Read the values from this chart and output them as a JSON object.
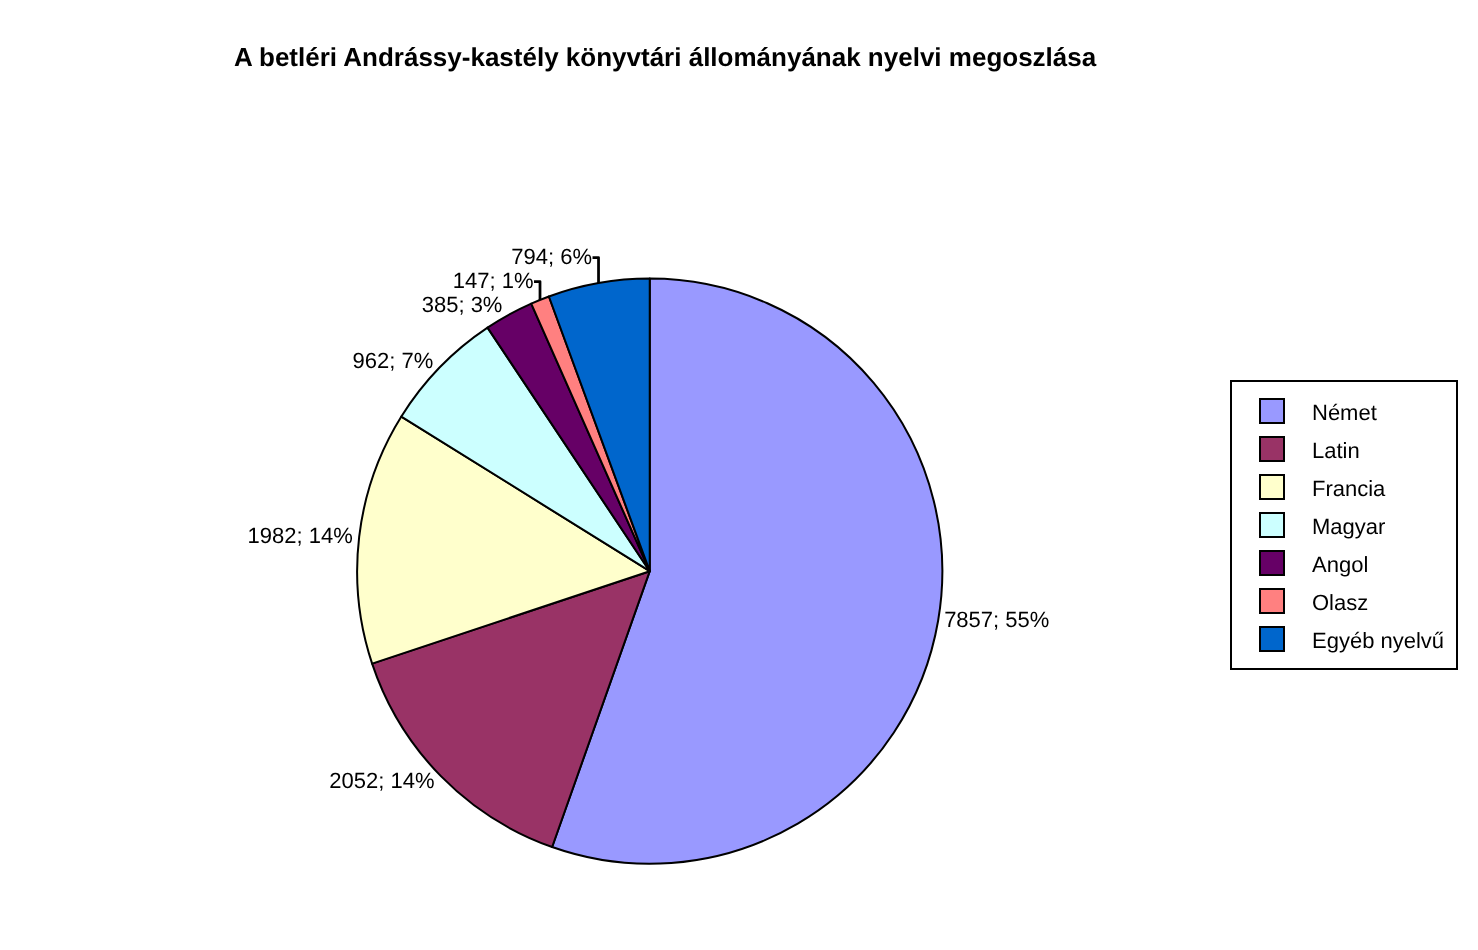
{
  "chart_data": {
    "type": "pie",
    "title": "A betléri Andrássy-kastély könyvtári állományának nyelvi megoszlása",
    "categories": [
      "Német",
      "Latin",
      "Francia",
      "Magyar",
      "Angol",
      "Olasz",
      "Egyéb nyelvű"
    ],
    "values": [
      7857,
      2052,
      1982,
      962,
      385,
      147,
      794
    ],
    "value_labels": [
      "7857; 55%",
      "2052; 14%",
      "1982; 14%",
      "962; 7%",
      "385; 3%",
      "147; 1%",
      "794; 6%"
    ],
    "colors": [
      "#9999ff",
      "#993366",
      "#ffffcc",
      "#ccffff",
      "#660066",
      "#ff8080",
      "#0066cc"
    ],
    "legend": "right"
  }
}
